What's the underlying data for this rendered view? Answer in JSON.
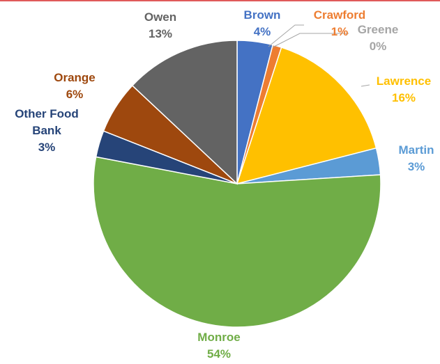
{
  "chart_data": {
    "type": "pie",
    "title": "",
    "slices": [
      {
        "label": "Brown",
        "percent_label": "4%",
        "value": 4,
        "color": "#4472c4"
      },
      {
        "label": "Crawford",
        "percent_label": "1%",
        "value": 1,
        "color": "#ed7d31"
      },
      {
        "label": "Greene",
        "percent_label": "0%",
        "value": 0,
        "color": "#a5a5a5"
      },
      {
        "label": "Lawrence",
        "percent_label": "16%",
        "value": 16,
        "color": "#ffc000"
      },
      {
        "label": "Martin",
        "percent_label": "3%",
        "value": 3,
        "color": "#5b9bd5"
      },
      {
        "label": "Monroe",
        "percent_label": "54%",
        "value": 54,
        "color": "#70ad47"
      },
      {
        "label": "Other Food Bank",
        "percent_label": "3%",
        "value": 3,
        "color": "#264478"
      },
      {
        "label": "Orange",
        "percent_label": "6%",
        "value": 6,
        "color": "#9e480e"
      },
      {
        "label": "Owen",
        "percent_label": "13%",
        "value": 13,
        "color": "#636363"
      }
    ],
    "legend": "none",
    "data_labels": "outside-with-leaders"
  }
}
